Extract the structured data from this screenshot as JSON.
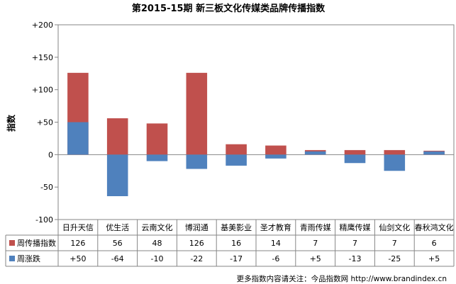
{
  "chart_data": {
    "type": "bar",
    "title": "第2015-15期 新三板文化传媒类品牌传播指数",
    "ylabel": "指数",
    "xlabel": "",
    "ylim": [
      -100,
      200
    ],
    "yticks": [
      -100,
      -50,
      0,
      50,
      100,
      150,
      200
    ],
    "ytick_labels": [
      "-100",
      "-50",
      "0",
      "+50",
      "+100",
      "+150",
      "+200"
    ],
    "grid": false,
    "legend": "in-table",
    "stacked_overlay": true,
    "categories": [
      "日升天信",
      "优生活",
      "云南文化",
      "博润通",
      "基美影业",
      "圣才教育",
      "青雨传媒",
      "精鹰传媒",
      "仙剑文化",
      "春秋鸿文化"
    ],
    "series": [
      {
        "name": "周传播指数",
        "color": "#c0504d",
        "values": [
          126,
          56,
          48,
          126,
          16,
          14,
          7,
          7,
          7,
          6
        ],
        "labels": [
          "126",
          "56",
          "48",
          "126",
          "16",
          "14",
          "7",
          "7",
          "7",
          "6"
        ]
      },
      {
        "name": "周涨跌",
        "color": "#4f81bd",
        "values": [
          50,
          -64,
          -10,
          -22,
          -17,
          -6,
          5,
          -13,
          -25,
          5
        ],
        "labels": [
          "+50",
          "-64",
          "-10",
          "-22",
          "-17",
          "-6",
          "+5",
          "-13",
          "-25",
          "+5"
        ]
      }
    ]
  },
  "footer": {
    "source_text": "更多指数内容请关注：今品指数网 http://www.brandindex.cn"
  }
}
